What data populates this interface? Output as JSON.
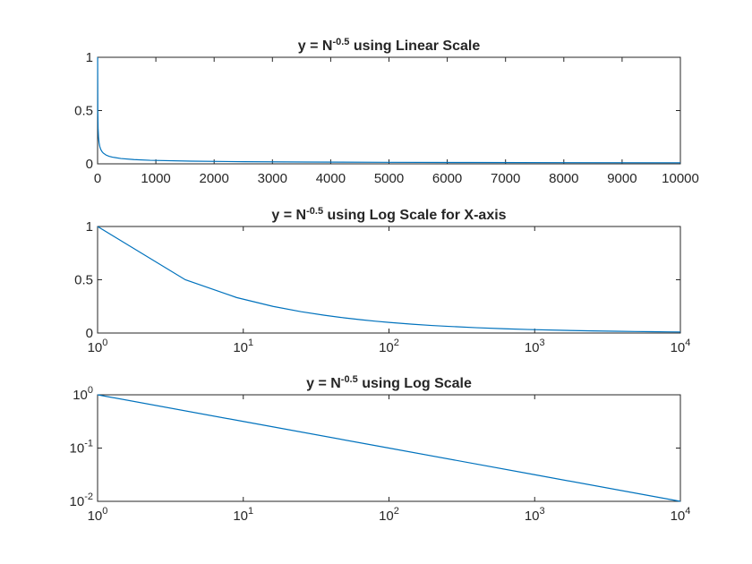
{
  "chart_data": [
    {
      "type": "line",
      "title": {
        "prefix": "y = N",
        "exponent": "-0.5",
        "suffix": " using Linear Scale"
      },
      "xscale": "linear",
      "yscale": "linear",
      "xlim": [
        0,
        10000
      ],
      "ylim": [
        0,
        1
      ],
      "x_ticks": [
        {
          "value": 0,
          "label": "0"
        },
        {
          "value": 1000,
          "label": "1000"
        },
        {
          "value": 2000,
          "label": "2000"
        },
        {
          "value": 3000,
          "label": "3000"
        },
        {
          "value": 4000,
          "label": "4000"
        },
        {
          "value": 5000,
          "label": "5000"
        },
        {
          "value": 6000,
          "label": "6000"
        },
        {
          "value": 7000,
          "label": "7000"
        },
        {
          "value": 8000,
          "label": "8000"
        },
        {
          "value": 9000,
          "label": "9000"
        },
        {
          "value": 10000,
          "label": "10000"
        }
      ],
      "y_ticks": [
        {
          "value": 0,
          "label": "0"
        },
        {
          "value": 0.5,
          "label": "0.5"
        },
        {
          "value": 1,
          "label": "1"
        }
      ],
      "series": [
        {
          "color": "#0072BD",
          "x": [
            1,
            4,
            9,
            16,
            25,
            36,
            49,
            64,
            81,
            100,
            144,
            196,
            256,
            400,
            625,
            900,
            1600,
            2500,
            3600,
            4900,
            6400,
            8100,
            10000
          ],
          "y": [
            1,
            0.5,
            0.333,
            0.25,
            0.2,
            0.167,
            0.143,
            0.125,
            0.111,
            0.1,
            0.083,
            0.071,
            0.0625,
            0.05,
            0.04,
            0.0333,
            0.025,
            0.02,
            0.0167,
            0.0143,
            0.0125,
            0.0111,
            0.01
          ]
        }
      ]
    },
    {
      "type": "line",
      "title": {
        "prefix": "y = N",
        "exponent": "-0.5",
        "suffix": " using Log Scale for X-axis"
      },
      "xscale": "log",
      "yscale": "linear",
      "xlim": [
        1,
        10000
      ],
      "ylim": [
        0,
        1
      ],
      "x_ticks": [
        {
          "value": 1,
          "base": "10",
          "exp": "0"
        },
        {
          "value": 10,
          "base": "10",
          "exp": "1"
        },
        {
          "value": 100,
          "base": "10",
          "exp": "2"
        },
        {
          "value": 1000,
          "base": "10",
          "exp": "3"
        },
        {
          "value": 10000,
          "base": "10",
          "exp": "4"
        }
      ],
      "y_ticks": [
        {
          "value": 0,
          "label": "0"
        },
        {
          "value": 0.5,
          "label": "0.5"
        },
        {
          "value": 1,
          "label": "1"
        }
      ],
      "series": [
        {
          "color": "#0072BD",
          "x": [
            1,
            4,
            9,
            16,
            25,
            36,
            49,
            64,
            81,
            100,
            144,
            196,
            256,
            400,
            625,
            900,
            1600,
            2500,
            3600,
            4900,
            6400,
            8100,
            10000
          ],
          "y": [
            1,
            0.5,
            0.333,
            0.25,
            0.2,
            0.167,
            0.143,
            0.125,
            0.111,
            0.1,
            0.083,
            0.071,
            0.0625,
            0.05,
            0.04,
            0.0333,
            0.025,
            0.02,
            0.0167,
            0.0143,
            0.0125,
            0.0111,
            0.01
          ]
        }
      ]
    },
    {
      "type": "line",
      "title": {
        "prefix": "y = N",
        "exponent": "-0.5",
        "suffix": " using Log Scale"
      },
      "xscale": "log",
      "yscale": "log",
      "xlim": [
        1,
        10000
      ],
      "ylim": [
        0.01,
        1
      ],
      "x_ticks": [
        {
          "value": 1,
          "base": "10",
          "exp": "0"
        },
        {
          "value": 10,
          "base": "10",
          "exp": "1"
        },
        {
          "value": 100,
          "base": "10",
          "exp": "2"
        },
        {
          "value": 1000,
          "base": "10",
          "exp": "3"
        },
        {
          "value": 10000,
          "base": "10",
          "exp": "4"
        }
      ],
      "y_ticks": [
        {
          "value": 1,
          "base": "10",
          "exp": "0"
        },
        {
          "value": 0.1,
          "base": "10",
          "exp": "-1"
        },
        {
          "value": 0.01,
          "base": "10",
          "exp": "-2"
        }
      ],
      "series": [
        {
          "color": "#0072BD",
          "x": [
            1,
            10,
            100,
            1000,
            10000
          ],
          "y": [
            1,
            0.316,
            0.1,
            0.0316,
            0.01
          ]
        }
      ]
    }
  ]
}
